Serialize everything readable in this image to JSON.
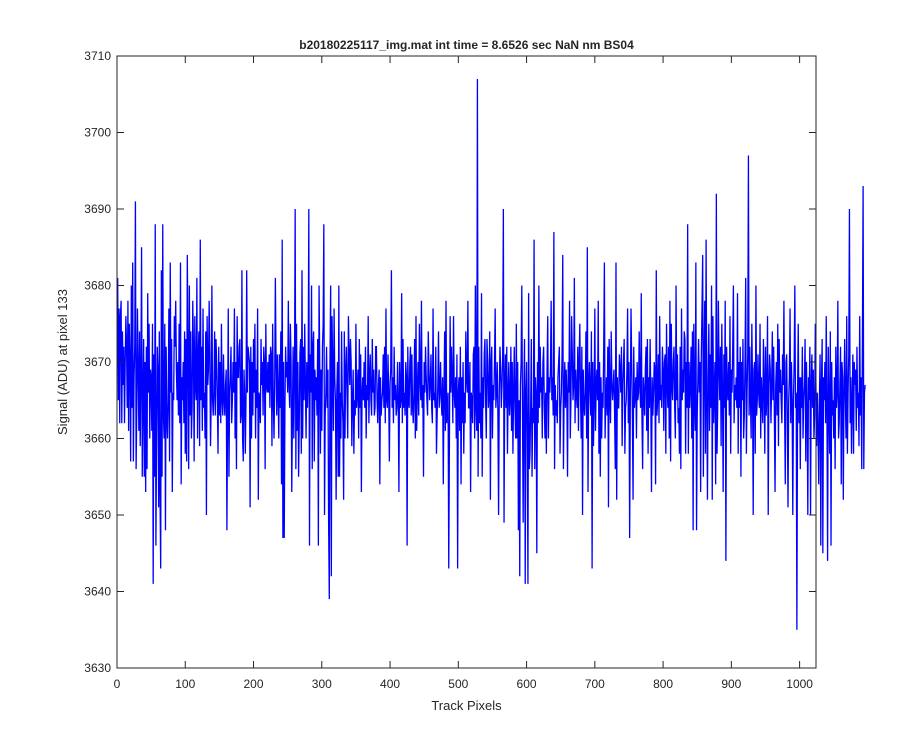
{
  "chart_data": {
    "type": "line",
    "title": "b20180225117_img.mat int time = 8.6526 sec  NaN nm BS04",
    "xlabel": "Track Pixels",
    "ylabel": "Signal (ADU) at pixel 133",
    "xlim": [
      0,
      1024
    ],
    "ylim": [
      3630,
      3710
    ],
    "xticks": [
      0,
      100,
      200,
      300,
      400,
      500,
      600,
      700,
      800,
      900,
      1000
    ],
    "yticks": [
      3630,
      3640,
      3650,
      3660,
      3670,
      3680,
      3690,
      3700,
      3710
    ],
    "grid": false,
    "box": true,
    "line_color": "#0000ff",
    "series": [
      {
        "color": "#0000ff",
        "x_start": 1,
        "x_step": 1,
        "y": [
          3681,
          3665,
          3677,
          3662,
          3676,
          3678,
          3662,
          3674,
          3667,
          3672,
          3662,
          3670,
          3676,
          3672,
          3664,
          3678,
          3661,
          3675,
          3670,
          3657,
          3680,
          3664,
          3683,
          3657,
          3668,
          3672,
          3691,
          3656,
          3664,
          3677,
          3669,
          3661,
          3674,
          3659,
          3668,
          3685,
          3655,
          3665,
          3673,
          3655,
          3670,
          3653,
          3672,
          3656,
          3679,
          3666,
          3675,
          3660,
          3669,
          3668,
          3661,
          3675,
          3641,
          3671,
          3655,
          3688,
          3646,
          3660,
          3672,
          3669,
          3651,
          3674,
          3653,
          3643,
          3682,
          3655,
          3688,
          3663,
          3660,
          3675,
          3648,
          3672,
          3663,
          3660,
          3665,
          3677,
          3657,
          3683,
          3666,
          3673,
          3653,
          3666,
          3665,
          3676,
          3672,
          3678,
          3669,
          3665,
          3670,
          3663,
          3675,
          3662,
          3683,
          3654,
          3668,
          3665,
          3670,
          3662,
          3674,
          3658,
          3673,
          3657,
          3684,
          3671,
          3656,
          3680,
          3663,
          3674,
          3660,
          3664,
          3678,
          3672,
          3657,
          3676,
          3667,
          3665,
          3681,
          3660,
          3671,
          3674,
          3659,
          3686,
          3665,
          3672,
          3661,
          3677,
          3664,
          3666,
          3660,
          3674,
          3650,
          3676,
          3667,
          3669,
          3678,
          3671,
          3659,
          3665,
          3680,
          3665,
          3663,
          3666,
          3674,
          3663,
          3673,
          3670,
          3665,
          3658,
          3672,
          3663,
          3670,
          3662,
          3675,
          3665,
          3663,
          3671,
          3665,
          3663,
          3667,
          3669,
          3648,
          3663,
          3677,
          3655,
          3666,
          3668,
          3672,
          3662,
          3665,
          3670,
          3666,
          3677,
          3660,
          3670,
          3656,
          3676,
          3668,
          3668,
          3672,
          3673,
          3662,
          3663,
          3682,
          3660,
          3657,
          3669,
          3666,
          3658,
          3665,
          3682,
          3666,
          3672,
          3671,
          3670,
          3651,
          3672,
          3660,
          3670,
          3663,
          3673,
          3666,
          3675,
          3660,
          3669,
          3664,
          3677,
          3652,
          3666,
          3665,
          3662,
          3673,
          3667,
          3670,
          3663,
          3672,
          3670,
          3656,
          3675,
          3667,
          3666,
          3670,
          3666,
          3671,
          3664,
          3672,
          3671,
          3659,
          3675,
          3665,
          3660,
          3667,
          3681,
          3670,
          3663,
          3671,
          3666,
          3660,
          3671,
          3664,
          3674,
          3654,
          3686,
          3647,
          3670,
          3647,
          3664,
          3672,
          3668,
          3670,
          3666,
          3678,
          3667,
          3664,
          3675,
          3670,
          3653,
          3663,
          3672,
          3660,
          3668,
          3690,
          3656,
          3675,
          3661,
          3670,
          3655,
          3662,
          3671,
          3673,
          3658,
          3682,
          3660,
          3672,
          3665,
          3675,
          3667,
          3660,
          3670,
          3664,
          3668,
          3690,
          3646,
          3671,
          3666,
          3680,
          3656,
          3672,
          3674,
          3657,
          3669,
          3665,
          3668,
          3663,
          3673,
          3646,
          3680,
          3670,
          3658,
          3669,
          3661,
          3672,
          3675,
          3688,
          3650,
          3663,
          3666,
          3672,
          3664,
          3669,
          3649,
          3639,
          3670,
          3680,
          3642,
          3676,
          3669,
          3661,
          3677,
          3668,
          3665,
          3652,
          3666,
          3670,
          3655,
          3680,
          3655,
          3666,
          3660,
          3674,
          3665,
          3662,
          3652,
          3674,
          3660,
          3669,
          3672,
          3666,
          3660,
          3676,
          3671,
          3667,
          3673,
          3670,
          3659,
          3665,
          3669,
          3658,
          3665,
          3663,
          3675,
          3664,
          3666,
          3669,
          3660,
          3673,
          3664,
          3671,
          3653,
          3666,
          3668,
          3665,
          3670,
          3664,
          3672,
          3660,
          3667,
          3665,
          3676,
          3662,
          3668,
          3671,
          3665,
          3663,
          3673,
          3666,
          3669,
          3663,
          3664,
          3672,
          3672,
          3665,
          3662,
          3667,
          3669,
          3654,
          3668,
          3663,
          3665,
          3666,
          3671,
          3664,
          3672,
          3662,
          3677,
          3665,
          3664,
          3671,
          3666,
          3657,
          3667,
          3669,
          3682,
          3664,
          3668,
          3662,
          3672,
          3665,
          3667,
          3663,
          3664,
          3670,
          3665,
          3653,
          3670,
          3664,
          3665,
          3679,
          3662,
          3673,
          3664,
          3666,
          3663,
          3670,
          3668,
          3646,
          3672,
          3665,
          3664,
          3670,
          3672,
          3663,
          3671,
          3664,
          3662,
          3666,
          3673,
          3660,
          3676,
          3661,
          3666,
          3670,
          3663,
          3675,
          3668,
          3665,
          3678,
          3664,
          3667,
          3655,
          3670,
          3666,
          3672,
          3668,
          3665,
          3663,
          3674,
          3669,
          3665,
          3667,
          3671,
          3664,
          3662,
          3677,
          3665,
          3666,
          3664,
          3672,
          3658,
          3663,
          3667,
          3674,
          3664,
          3666,
          3670,
          3665,
          3663,
          3668,
          3654,
          3666,
          3674,
          3661,
          3678,
          3662,
          3664,
          3666,
          3643,
          3660,
          3676,
          3666,
          3672,
          3668,
          3662,
          3676,
          3666,
          3664,
          3668,
          3660,
          3671,
          3643,
          3666,
          3668,
          3661,
          3672,
          3654,
          3668,
          3662,
          3670,
          3658,
          3666,
          3662,
          3674,
          3668,
          3666,
          3678,
          3664,
          3664,
          3670,
          3653,
          3666,
          3665,
          3662,
          3671,
          3672,
          3660,
          3680,
          3664,
          3661,
          3707,
          3655,
          3672,
          3662,
          3666,
          3660,
          3679,
          3655,
          3668,
          3664,
          3671,
          3673,
          3665,
          3660,
          3673,
          3670,
          3664,
          3666,
          3674,
          3652,
          3670,
          3672,
          3660,
          3667,
          3665,
          3670,
          3677,
          3664,
          3666,
          3670,
          3663,
          3650,
          3666,
          3672,
          3669,
          3664,
          3667,
          3671,
          3690,
          3649,
          3667,
          3671,
          3664,
          3672,
          3658,
          3666,
          3670,
          3663,
          3665,
          3672,
          3661,
          3670,
          3658,
          3666,
          3672,
          3664,
          3660,
          3675,
          3660,
          3670,
          3648,
          3665,
          3642,
          3667,
          3670,
          3680,
          3664,
          3649,
          3666,
          3673,
          3641,
          3666,
          3670,
          3660,
          3641,
          3679,
          3656,
          3658,
          3664,
          3673,
          3655,
          3664,
          3662,
          3686,
          3656,
          3668,
          3666,
          3645,
          3670,
          3662,
          3680,
          3664,
          3672,
          3666,
          3668,
          3660,
          3670,
          3672,
          3664,
          3660,
          3666,
          3658,
          3669,
          3676,
          3660,
          3668,
          3666,
          3669,
          3678,
          3665,
          3668,
          3663,
          3687,
          3656,
          3667,
          3663,
          3665,
          3662,
          3668,
          3670,
          3672,
          3658,
          3664,
          3666,
          3671,
          3684,
          3656,
          3666,
          3670,
          3664,
          3669,
          3666,
          3655,
          3670,
          3666,
          3678,
          3660,
          3665,
          3676,
          3671,
          3665,
          3667,
          3681,
          3662,
          3669,
          3666,
          3664,
          3672,
          3661,
          3670,
          3675,
          3666,
          3660,
          3672,
          3650,
          3669,
          3665,
          3663,
          3666,
          3674,
          3660,
          3685,
          3653,
          3667,
          3670,
          3666,
          3663,
          3674,
          3643,
          3670,
          3659,
          3665,
          3677,
          3661,
          3667,
          3669,
          3665,
          3678,
          3658,
          3670,
          3655,
          3668,
          3660,
          3666,
          3664,
          3672,
          3683,
          3660,
          3665,
          3668,
          3663,
          3672,
          3651,
          3673,
          3666,
          3662,
          3674,
          3667,
          3665,
          3667,
          3669,
          3663,
          3656,
          3683,
          3652,
          3668,
          3664,
          3664,
          3671,
          3669,
          3666,
          3672,
          3659,
          3667,
          3670,
          3673,
          3658,
          3664,
          3665,
          3669,
          3677,
          3662,
          3670,
          3647,
          3665,
          3677,
          3670,
          3663,
          3652,
          3672,
          3664,
          3666,
          3668,
          3660,
          3670,
          3665,
          3666,
          3674,
          3667,
          3664,
          3679,
          3663,
          3656,
          3668,
          3666,
          3663,
          3669,
          3672,
          3661,
          3673,
          3658,
          3668,
          3664,
          3673,
          3665,
          3653,
          3668,
          3663,
          3666,
          3670,
          3669,
          3654,
          3682,
          3663,
          3665,
          3671,
          3662,
          3676,
          3665,
          3667,
          3664,
          3672,
          3669,
          3661,
          3670,
          3671,
          3658,
          3675,
          3667,
          3664,
          3672,
          3660,
          3678,
          3657,
          3675,
          3667,
          3665,
          3670,
          3672,
          3664,
          3660,
          3680,
          3665,
          3671,
          3662,
          3664,
          3658,
          3672,
          3656,
          3677,
          3665,
          3669,
          3666,
          3674,
          3673,
          3658,
          3670,
          3664,
          3688,
          3658,
          3670,
          3664,
          3667,
          3672,
          3660,
          3674,
          3648,
          3675,
          3665,
          3661,
          3683,
          3648,
          3663,
          3668,
          3673,
          3666,
          3670,
          3653,
          3671,
          3677,
          3684,
          3655,
          3670,
          3678,
          3658,
          3686,
          3665,
          3652,
          3668,
          3675,
          3661,
          3671,
          3664,
          3680,
          3652,
          3676,
          3662,
          3666,
          3670,
          3654,
          3692,
          3658,
          3664,
          3678,
          3669,
          3665,
          3672,
          3659,
          3675,
          3666,
          3653,
          3671,
          3664,
          3678,
          3644,
          3672,
          3667,
          3665,
          3670,
          3663,
          3676,
          3658,
          3669,
          3666,
          3672,
          3680,
          3662,
          3667,
          3665,
          3668,
          3664,
          3679,
          3658,
          3670,
          3664,
          3672,
          3655,
          3670,
          3665,
          3673,
          3660,
          3663,
          3670,
          3681,
          3658,
          3666,
          3671,
          3697,
          3663,
          3672,
          3665,
          3660,
          3675,
          3667,
          3650,
          3669,
          3670,
          3658,
          3680,
          3663,
          3665,
          3671,
          3666,
          3664,
          3675,
          3660,
          3668,
          3665,
          3662,
          3673,
          3667,
          3658,
          3672,
          3663,
          3666,
          3676,
          3650,
          3667,
          3671,
          3669,
          3662,
          3667,
          3674,
          3665,
          3672,
          3663,
          3653,
          3667,
          3670,
          3663,
          3675,
          3659,
          3673,
          3666,
          3669,
          3665,
          3662,
          3671,
          3667,
          3678,
          3664,
          3654,
          3670,
          3671,
          3663,
          3651,
          3665,
          3668,
          3677,
          3662,
          3670,
          3665,
          3650,
          3665,
          3670,
          3680,
          3664,
          3666,
          3635,
          3666,
          3675,
          3662,
          3668,
          3656,
          3668,
          3664,
          3672,
          3660,
          3665,
          3667,
          3673,
          3657,
          3670,
          3664,
          3650,
          3668,
          3665,
          3672,
          3650,
          3667,
          3671,
          3664,
          3669,
          3660,
          3663,
          3675,
          3666,
          3659,
          3666,
          3661,
          3654,
          3665,
          3671,
          3646,
          3667,
          3673,
          3645,
          3668,
          3665,
          3670,
          3662,
          3676,
          3664,
          3644,
          3672,
          3664,
          3658,
          3674,
          3646,
          3670,
          3663,
          3665,
          3660,
          3668,
          3656,
          3672,
          3664,
          3666,
          3678,
          3660,
          3662,
          3667,
          3672,
          3654,
          3670,
          3668,
          3652,
          3666,
          3673,
          3665,
          3660,
          3676,
          3658,
          3666,
          3671,
          3690,
          3662,
          3668,
          3658,
          3665,
          3671,
          3658,
          3670,
          3667,
          3669,
          3661,
          3672,
          3664,
          3666,
          3659,
          3676,
          3663,
          3668,
          3656,
          3673,
          3693,
          3656,
          3666,
          3667
        ]
      }
    ]
  }
}
